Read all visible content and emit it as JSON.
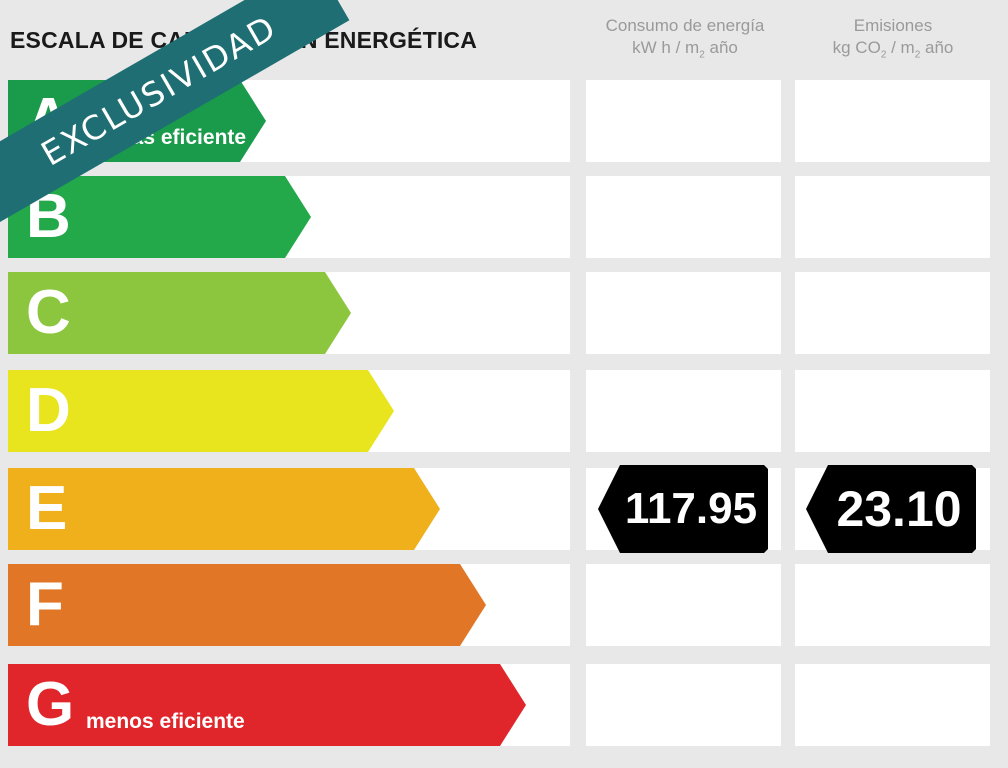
{
  "title": "ESCALA DE CALIFICACIÓN ENERGÉTICA",
  "columns": {
    "energy": {
      "line1": "Consumo de energía",
      "line2_pre": "kW h / m",
      "line2_sub": "2",
      "line2_post": " año"
    },
    "emissions": {
      "line1": "Emisiones",
      "line2_pre": "kg CO",
      "line2_sub1": "2",
      "line2_mid": " / m",
      "line2_sub2": "2",
      "line2_post": " año"
    }
  },
  "ribbon": "EXCLUSIVIDAD",
  "ratings": [
    {
      "letter": "A",
      "note": "más eficiente",
      "color": "#1a9a4b"
    },
    {
      "letter": "B",
      "note": "",
      "color": "#23a84a"
    },
    {
      "letter": "C",
      "note": "",
      "color": "#8cc63e"
    },
    {
      "letter": "D",
      "note": "",
      "color": "#e8e41e"
    },
    {
      "letter": "E",
      "note": "",
      "color": "#efb01c"
    },
    {
      "letter": "F",
      "note": "",
      "color": "#e17627"
    },
    {
      "letter": "G",
      "note": "menos eficiente",
      "color": "#e0262b"
    }
  ],
  "current": {
    "rating": "E",
    "energy_value": "117.95",
    "emissions_value": "23.10"
  }
}
